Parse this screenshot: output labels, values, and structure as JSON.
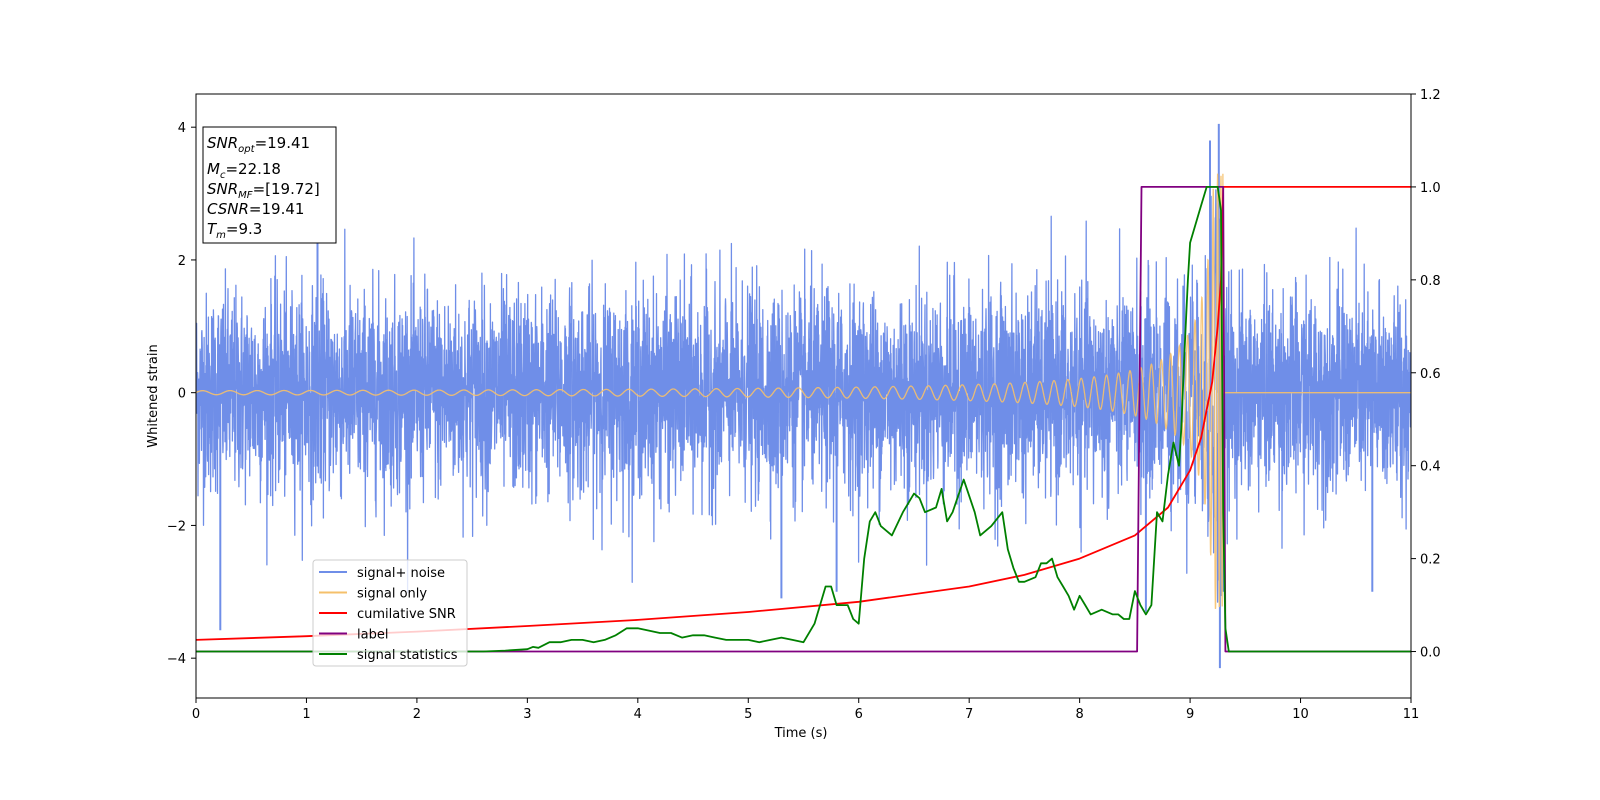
{
  "chart_data": {
    "type": "line",
    "xlabel": "Time (s)",
    "ylabel": "Whitened strain",
    "xlim": [
      0,
      11
    ],
    "ylim_left": [
      -4.6,
      4.5
    ],
    "ylim_right": [
      -0.1,
      1.2
    ],
    "x_ticks": [
      "0",
      "1",
      "2",
      "3",
      "4",
      "5",
      "6",
      "7",
      "8",
      "9",
      "10",
      "11"
    ],
    "y_ticks_left": [
      "4",
      "2",
      "0",
      "−2",
      "−4"
    ],
    "y_ticks_right": [
      "1.2",
      "1.0",
      "0.8",
      "0.6",
      "0.4",
      "0.2",
      "0.0"
    ],
    "grid": false,
    "legend_position": "lower-left",
    "annotation": {
      "snr_opt": {
        "sym": "SNR",
        "sub": "opt",
        "val": "=19.41"
      },
      "mc": {
        "sym": "M",
        "sub": "c",
        "val": "=22.18"
      },
      "snr_mf": {
        "sym": "SNR",
        "sub": "MF",
        "val": "=[19.72]"
      },
      "csnr": {
        "sym": "CSNR",
        "val": "=19.41"
      },
      "tm": {
        "sym": "T",
        "sub": "m",
        "val": "=9.3"
      }
    },
    "series": [
      {
        "name": "signal+ noise",
        "axis": "left",
        "color": "#6f8ee8",
        "description_values": {
          "noise_std": 0.75,
          "peak_max": 4.1,
          "peak_min": -4.15
        }
      },
      {
        "name": "signal only",
        "axis": "left",
        "color": "#f5c06b",
        "chirp": {
          "amplitude_start": 0.03,
          "amplitude_peak": 3.3,
          "merger_time": 9.3,
          "freq_start_hz": 4
        }
      },
      {
        "name": "cumilative SNR",
        "axis": "right",
        "color": "#ff0000",
        "x": [
          0,
          1,
          2,
          3,
          4,
          5,
          6,
          7,
          7.5,
          8,
          8.5,
          8.8,
          9.0,
          9.1,
          9.2,
          9.25,
          9.28,
          9.3,
          11
        ],
        "y": [
          0.025,
          0.033,
          0.043,
          0.055,
          0.068,
          0.085,
          0.107,
          0.14,
          0.165,
          0.2,
          0.25,
          0.31,
          0.39,
          0.46,
          0.58,
          0.7,
          0.8,
          1.0,
          1.0
        ]
      },
      {
        "name": "label",
        "axis": "right",
        "color": "#800080",
        "x": [
          0,
          8.52,
          8.56,
          9.3,
          9.32,
          11
        ],
        "y": [
          0,
          0,
          1.0,
          1.0,
          0,
          0
        ]
      },
      {
        "name": "signal statistics",
        "axis": "right",
        "color": "#008000",
        "x": [
          0,
          1,
          2,
          2.3,
          2.6,
          2.8,
          3.0,
          3.05,
          3.1,
          3.2,
          3.3,
          3.4,
          3.5,
          3.6,
          3.7,
          3.8,
          3.9,
          4.0,
          4.1,
          4.2,
          4.3,
          4.4,
          4.5,
          4.6,
          4.7,
          4.8,
          4.9,
          5.0,
          5.1,
          5.2,
          5.3,
          5.4,
          5.5,
          5.6,
          5.7,
          5.75,
          5.8,
          5.9,
          5.95,
          6.0,
          6.05,
          6.1,
          6.15,
          6.2,
          6.3,
          6.4,
          6.5,
          6.55,
          6.6,
          6.7,
          6.75,
          6.8,
          6.85,
          6.95,
          7.05,
          7.1,
          7.2,
          7.3,
          7.35,
          7.4,
          7.45,
          7.5,
          7.6,
          7.65,
          7.7,
          7.75,
          7.8,
          7.85,
          7.9,
          7.95,
          8.0,
          8.05,
          8.1,
          8.2,
          8.3,
          8.35,
          8.4,
          8.45,
          8.5,
          8.55,
          8.6,
          8.65,
          8.7,
          8.75,
          8.8,
          8.85,
          8.9,
          8.92,
          8.95,
          8.98,
          9.0,
          9.05,
          9.1,
          9.15,
          9.2,
          9.25,
          9.28,
          9.3,
          9.32,
          9.35,
          9.4,
          11
        ],
        "y": [
          0.0,
          0.0,
          0.0,
          0.0,
          0.0,
          0.002,
          0.005,
          0.01,
          0.008,
          0.02,
          0.02,
          0.025,
          0.025,
          0.02,
          0.025,
          0.035,
          0.05,
          0.05,
          0.045,
          0.04,
          0.04,
          0.03,
          0.035,
          0.035,
          0.03,
          0.025,
          0.025,
          0.025,
          0.02,
          0.025,
          0.03,
          0.025,
          0.02,
          0.06,
          0.14,
          0.14,
          0.1,
          0.1,
          0.07,
          0.06,
          0.2,
          0.28,
          0.3,
          0.27,
          0.25,
          0.3,
          0.34,
          0.33,
          0.3,
          0.31,
          0.35,
          0.28,
          0.3,
          0.37,
          0.3,
          0.25,
          0.27,
          0.3,
          0.22,
          0.18,
          0.15,
          0.15,
          0.16,
          0.19,
          0.19,
          0.2,
          0.16,
          0.14,
          0.12,
          0.09,
          0.12,
          0.1,
          0.08,
          0.09,
          0.08,
          0.08,
          0.07,
          0.07,
          0.13,
          0.1,
          0.08,
          0.1,
          0.3,
          0.28,
          0.38,
          0.45,
          0.4,
          0.48,
          0.65,
          0.8,
          0.88,
          0.92,
          0.96,
          1.0,
          1.0,
          1.0,
          0.95,
          0.3,
          0.05,
          0.0,
          0.0,
          0.0
        ]
      }
    ]
  }
}
